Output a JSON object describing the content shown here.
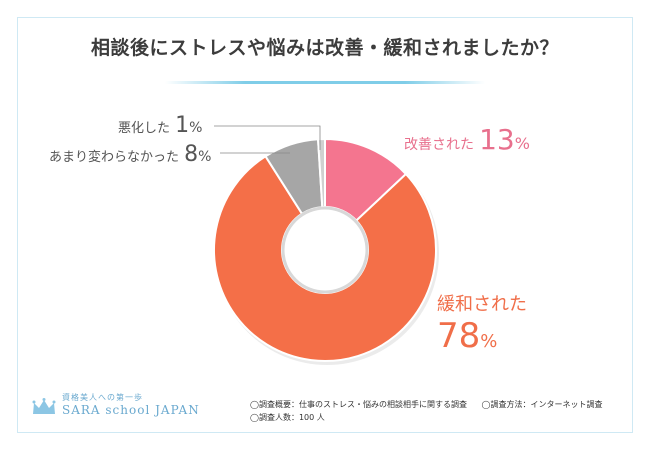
{
  "title": "相談後にストレスや悩みは改善・緩和されましたか？",
  "chart_data": {
    "type": "pie",
    "donut": true,
    "slices": [
      {
        "label": "改善された",
        "value": 13,
        "unit": "%",
        "color": "#f4758f"
      },
      {
        "label": "緩和された",
        "value": 78,
        "unit": "%",
        "color": "#f46f48"
      },
      {
        "label": "あまり変わらなかった",
        "value": 8,
        "unit": "%",
        "color": "#a6a6a6"
      },
      {
        "label": "悪化した",
        "value": 1,
        "unit": "%",
        "color": "#d0d0d0"
      }
    ]
  },
  "logo": {
    "tagline": "資格美人への第一歩",
    "brand": "SARA school JAPAN"
  },
  "notes": {
    "summary": "◯調査概要：仕事のストレス・悩みの相談相手に関する調査",
    "method": "◯調査方法：インターネット調査",
    "respondents": "◯調査人数：100 人"
  },
  "colors": {
    "border": "#9fd8ee",
    "accent_line": "#7fcde8",
    "title_text": "#3c3c3c"
  }
}
